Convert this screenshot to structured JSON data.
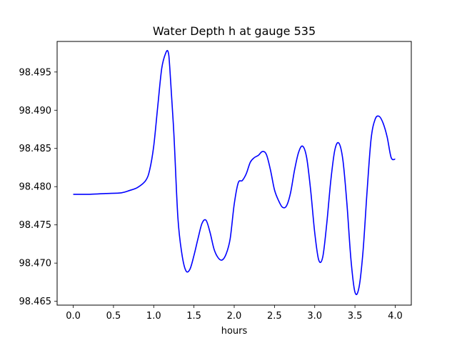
{
  "chart_data": {
    "type": "line",
    "title": "Water Depth h at gauge 535",
    "xlabel": "hours",
    "ylabel": "",
    "xlim": [
      -0.2,
      4.2
    ],
    "ylim": [
      98.4645,
      98.499
    ],
    "xticks": [
      0.0,
      0.5,
      1.0,
      1.5,
      2.0,
      2.5,
      3.0,
      3.5,
      4.0
    ],
    "xtick_labels": [
      "0.0",
      "0.5",
      "1.0",
      "1.5",
      "2.0",
      "2.5",
      "3.0",
      "3.5",
      "4.0"
    ],
    "yticks": [
      98.465,
      98.47,
      98.475,
      98.48,
      98.485,
      98.49,
      98.495
    ],
    "ytick_labels": [
      "98.465",
      "98.470",
      "98.475",
      "98.480",
      "98.485",
      "98.490",
      "98.495"
    ],
    "grid": false,
    "series": [
      {
        "color": "#0000ff",
        "x": [
          0.0,
          0.2,
          0.4,
          0.6,
          0.7,
          0.8,
          0.9,
          0.95,
          1.0,
          1.05,
          1.1,
          1.15,
          1.18,
          1.2,
          1.25,
          1.3,
          1.35,
          1.4,
          1.45,
          1.5,
          1.55,
          1.6,
          1.65,
          1.7,
          1.75,
          1.8,
          1.85,
          1.9,
          1.95,
          2.0,
          2.05,
          2.1,
          2.15,
          2.2,
          2.25,
          2.3,
          2.35,
          2.4,
          2.45,
          2.5,
          2.55,
          2.6,
          2.65,
          2.7,
          2.75,
          2.8,
          2.85,
          2.9,
          2.95,
          3.0,
          3.05,
          3.1,
          3.15,
          3.2,
          3.25,
          3.3,
          3.35,
          3.4,
          3.45,
          3.5,
          3.55,
          3.6,
          3.65,
          3.7,
          3.75,
          3.8,
          3.85,
          3.9,
          3.95,
          4.0
        ],
        "y": [
          98.479,
          98.479,
          98.4791,
          98.4792,
          98.4795,
          98.4799,
          98.4808,
          98.4822,
          98.4853,
          98.4905,
          98.4955,
          98.4975,
          98.4976,
          98.4955,
          98.487,
          98.476,
          98.4712,
          98.469,
          98.4692,
          98.471,
          98.4732,
          98.4752,
          98.4756,
          98.474,
          98.4718,
          98.4707,
          98.4704,
          98.4712,
          98.4732,
          98.4777,
          98.4805,
          98.4808,
          98.4817,
          98.4832,
          98.4838,
          98.4841,
          98.4846,
          98.4842,
          98.4822,
          98.4796,
          98.4782,
          98.4773,
          98.4775,
          98.4792,
          98.4822,
          98.4845,
          98.4853,
          98.4838,
          98.4795,
          98.474,
          98.4704,
          98.4708,
          98.4752,
          98.4808,
          98.4848,
          98.4857,
          98.4835,
          98.4778,
          98.4705,
          98.4662,
          98.4668,
          98.4715,
          98.4793,
          98.4862,
          98.4888,
          98.4892,
          98.4883,
          98.4865,
          98.4838,
          98.4836
        ]
      }
    ]
  }
}
